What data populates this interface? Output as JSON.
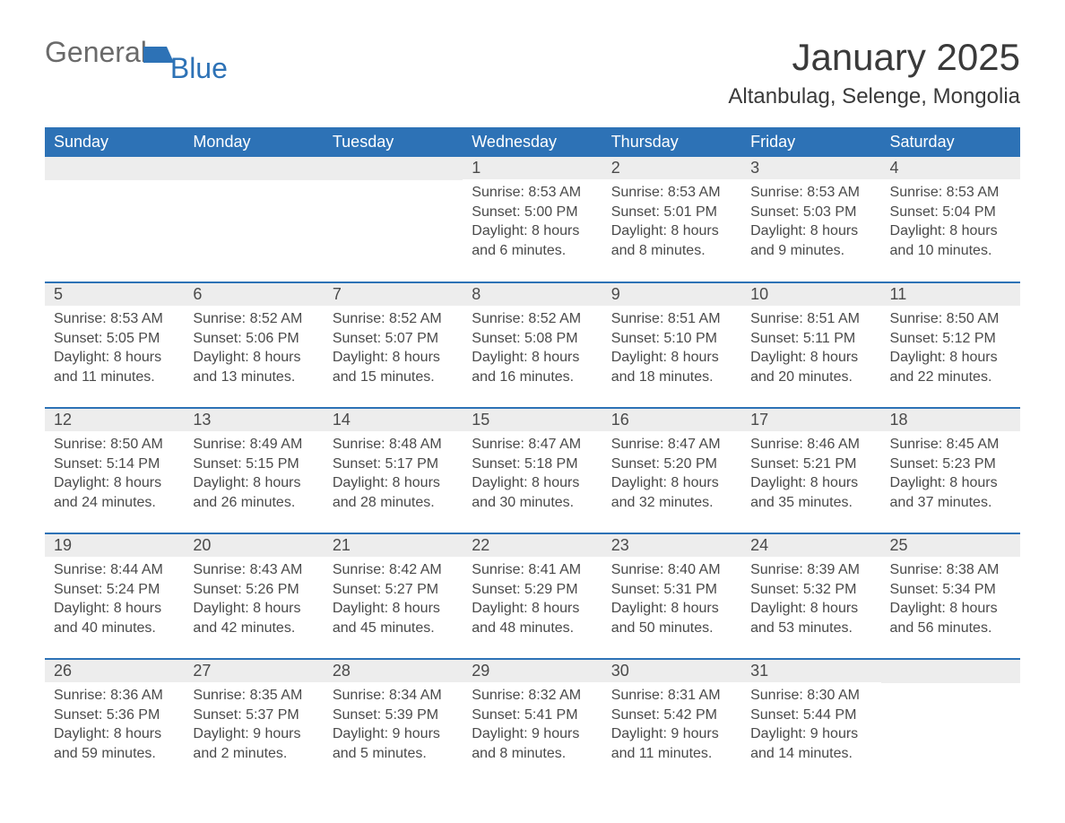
{
  "logo": {
    "word1": "General",
    "word2": "Blue"
  },
  "title": "January 2025",
  "location": "Altanbulag, Selenge, Mongolia",
  "colors": {
    "header_bg": "#2d72b6",
    "header_text": "#ffffff",
    "daynum_bg": "#ededed",
    "body_text": "#4a4a4a",
    "page_bg": "#ffffff",
    "rule": "#2d72b6"
  },
  "weekdays": [
    "Sunday",
    "Monday",
    "Tuesday",
    "Wednesday",
    "Thursday",
    "Friday",
    "Saturday"
  ],
  "weeks": [
    [
      null,
      null,
      null,
      {
        "n": "1",
        "sr": "8:53 AM",
        "ss": "5:00 PM",
        "dl": "8 hours and 6 minutes."
      },
      {
        "n": "2",
        "sr": "8:53 AM",
        "ss": "5:01 PM",
        "dl": "8 hours and 8 minutes."
      },
      {
        "n": "3",
        "sr": "8:53 AM",
        "ss": "5:03 PM",
        "dl": "8 hours and 9 minutes."
      },
      {
        "n": "4",
        "sr": "8:53 AM",
        "ss": "5:04 PM",
        "dl": "8 hours and 10 minutes."
      }
    ],
    [
      {
        "n": "5",
        "sr": "8:53 AM",
        "ss": "5:05 PM",
        "dl": "8 hours and 11 minutes."
      },
      {
        "n": "6",
        "sr": "8:52 AM",
        "ss": "5:06 PM",
        "dl": "8 hours and 13 minutes."
      },
      {
        "n": "7",
        "sr": "8:52 AM",
        "ss": "5:07 PM",
        "dl": "8 hours and 15 minutes."
      },
      {
        "n": "8",
        "sr": "8:52 AM",
        "ss": "5:08 PM",
        "dl": "8 hours and 16 minutes."
      },
      {
        "n": "9",
        "sr": "8:51 AM",
        "ss": "5:10 PM",
        "dl": "8 hours and 18 minutes."
      },
      {
        "n": "10",
        "sr": "8:51 AM",
        "ss": "5:11 PM",
        "dl": "8 hours and 20 minutes."
      },
      {
        "n": "11",
        "sr": "8:50 AM",
        "ss": "5:12 PM",
        "dl": "8 hours and 22 minutes."
      }
    ],
    [
      {
        "n": "12",
        "sr": "8:50 AM",
        "ss": "5:14 PM",
        "dl": "8 hours and 24 minutes."
      },
      {
        "n": "13",
        "sr": "8:49 AM",
        "ss": "5:15 PM",
        "dl": "8 hours and 26 minutes."
      },
      {
        "n": "14",
        "sr": "8:48 AM",
        "ss": "5:17 PM",
        "dl": "8 hours and 28 minutes."
      },
      {
        "n": "15",
        "sr": "8:47 AM",
        "ss": "5:18 PM",
        "dl": "8 hours and 30 minutes."
      },
      {
        "n": "16",
        "sr": "8:47 AM",
        "ss": "5:20 PM",
        "dl": "8 hours and 32 minutes."
      },
      {
        "n": "17",
        "sr": "8:46 AM",
        "ss": "5:21 PM",
        "dl": "8 hours and 35 minutes."
      },
      {
        "n": "18",
        "sr": "8:45 AM",
        "ss": "5:23 PM",
        "dl": "8 hours and 37 minutes."
      }
    ],
    [
      {
        "n": "19",
        "sr": "8:44 AM",
        "ss": "5:24 PM",
        "dl": "8 hours and 40 minutes."
      },
      {
        "n": "20",
        "sr": "8:43 AM",
        "ss": "5:26 PM",
        "dl": "8 hours and 42 minutes."
      },
      {
        "n": "21",
        "sr": "8:42 AM",
        "ss": "5:27 PM",
        "dl": "8 hours and 45 minutes."
      },
      {
        "n": "22",
        "sr": "8:41 AM",
        "ss": "5:29 PM",
        "dl": "8 hours and 48 minutes."
      },
      {
        "n": "23",
        "sr": "8:40 AM",
        "ss": "5:31 PM",
        "dl": "8 hours and 50 minutes."
      },
      {
        "n": "24",
        "sr": "8:39 AM",
        "ss": "5:32 PM",
        "dl": "8 hours and 53 minutes."
      },
      {
        "n": "25",
        "sr": "8:38 AM",
        "ss": "5:34 PM",
        "dl": "8 hours and 56 minutes."
      }
    ],
    [
      {
        "n": "26",
        "sr": "8:36 AM",
        "ss": "5:36 PM",
        "dl": "8 hours and 59 minutes."
      },
      {
        "n": "27",
        "sr": "8:35 AM",
        "ss": "5:37 PM",
        "dl": "9 hours and 2 minutes."
      },
      {
        "n": "28",
        "sr": "8:34 AM",
        "ss": "5:39 PM",
        "dl": "9 hours and 5 minutes."
      },
      {
        "n": "29",
        "sr": "8:32 AM",
        "ss": "5:41 PM",
        "dl": "9 hours and 8 minutes."
      },
      {
        "n": "30",
        "sr": "8:31 AM",
        "ss": "5:42 PM",
        "dl": "9 hours and 11 minutes."
      },
      {
        "n": "31",
        "sr": "8:30 AM",
        "ss": "5:44 PM",
        "dl": "9 hours and 14 minutes."
      },
      null
    ]
  ],
  "labels": {
    "sunrise": "Sunrise: ",
    "sunset": "Sunset: ",
    "daylight": "Daylight: "
  }
}
